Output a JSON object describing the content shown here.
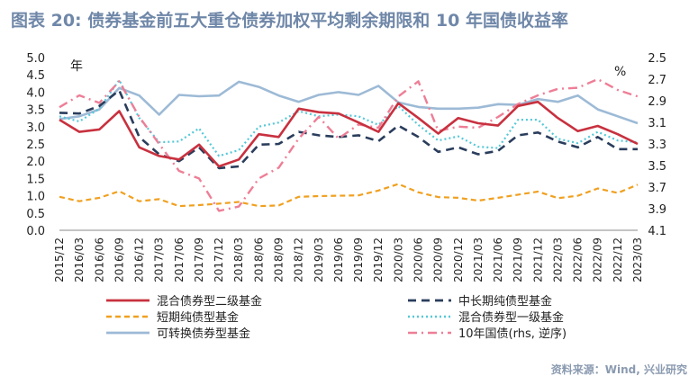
{
  "title": "图表 20: 债券基金前五大重仓债券加权平均剩余期限和 10 年国债收益率",
  "source": "资料来源：Wind, 兴业研究",
  "colors": {
    "hunhe2": "#c8313f",
    "zhongchang": "#2a3d5c",
    "duanqi": "#f0a020",
    "hunhe1": "#55c8d8",
    "kezhuan": "#9dbad6",
    "guozhai": "#ee7e96"
  },
  "chart_data": {
    "type": "line",
    "title": "图表 20: 债券基金前五大重仓债券加权平均剩余期限和 10 年国债收益率",
    "left_unit": "年",
    "right_unit": "%",
    "ylim_left": [
      0,
      5
    ],
    "yticks_left": [
      "0.0",
      "0.5",
      "1.0",
      "1.5",
      "2.0",
      "2.5",
      "3.0",
      "3.5",
      "4.0",
      "4.5",
      "5.0"
    ],
    "ylim_right": [
      2.5,
      4.1
    ],
    "right_inverted": true,
    "yticks_right": [
      "2.5",
      "2.7",
      "2.9",
      "3.1",
      "3.3",
      "3.5",
      "3.7",
      "3.9",
      "4.1"
    ],
    "categories": [
      "2015/12",
      "2016/03",
      "2016/06",
      "2016/09",
      "2016/12",
      "2017/03",
      "2017/06",
      "2017/09",
      "2017/12",
      "2018/03",
      "2018/06",
      "2018/09",
      "2018/12",
      "2019/03",
      "2019/06",
      "2019/09",
      "2019/12",
      "2020/03",
      "2020/06",
      "2020/09",
      "2020/12",
      "2021/03",
      "2021/06",
      "2021/09",
      "2021/12",
      "2022/03",
      "2022/06",
      "2022/09",
      "2022/12",
      "2023/03"
    ],
    "legend_position": "bottom",
    "grid": false,
    "series": [
      {
        "name": "混合债券型二级基金",
        "axis": "left",
        "style": "solid",
        "colorKey": "hunhe2",
        "values": [
          3.2,
          2.85,
          2.92,
          3.45,
          2.4,
          2.15,
          2.05,
          2.48,
          1.85,
          2.05,
          2.78,
          2.7,
          3.52,
          3.42,
          3.38,
          3.12,
          2.85,
          3.68,
          3.25,
          2.8,
          3.25,
          3.1,
          3.03,
          3.6,
          3.72,
          3.25,
          2.87,
          3.02,
          2.78,
          2.5
        ]
      },
      {
        "name": "中长期纯债型基金",
        "axis": "left",
        "style": "dashed",
        "colorKey": "zhongchang",
        "values": [
          3.4,
          3.38,
          3.6,
          4.05,
          2.7,
          2.2,
          2.0,
          2.4,
          1.8,
          1.85,
          2.48,
          2.5,
          2.85,
          2.75,
          2.7,
          2.75,
          2.58,
          3.03,
          2.7,
          2.27,
          2.4,
          2.2,
          2.3,
          2.75,
          2.83,
          2.57,
          2.4,
          2.7,
          2.35,
          2.35
        ]
      },
      {
        "name": "短期纯债型基金",
        "axis": "left",
        "style": "shortdash",
        "colorKey": "duanqi",
        "values": [
          0.97,
          0.84,
          0.94,
          1.13,
          0.84,
          0.9,
          0.7,
          0.73,
          0.77,
          0.82,
          0.7,
          0.72,
          0.97,
          0.99,
          1.0,
          1.01,
          1.15,
          1.34,
          1.1,
          0.96,
          0.94,
          0.86,
          0.94,
          1.03,
          1.12,
          0.93,
          1.0,
          1.21,
          1.08,
          1.32
        ]
      },
      {
        "name": "混合债券型一级基金",
        "axis": "left",
        "style": "dotted",
        "colorKey": "hunhe1",
        "values": [
          3.3,
          3.15,
          3.52,
          4.35,
          3.25,
          2.55,
          2.57,
          2.95,
          2.15,
          2.32,
          3.0,
          3.12,
          3.45,
          3.3,
          3.35,
          3.3,
          3.05,
          3.6,
          3.05,
          2.6,
          2.72,
          2.42,
          2.38,
          3.2,
          3.2,
          2.65,
          2.52,
          2.85,
          2.6,
          2.55
        ]
      },
      {
        "name": "可转换债券型基金",
        "axis": "left",
        "style": "solid",
        "colorKey": "kezhuan",
        "values": [
          3.22,
          3.3,
          3.5,
          4.12,
          3.9,
          3.35,
          3.92,
          3.88,
          3.9,
          4.3,
          4.15,
          3.9,
          3.72,
          3.92,
          4.0,
          3.92,
          4.18,
          3.7,
          3.57,
          3.52,
          3.52,
          3.55,
          3.65,
          3.63,
          3.8,
          3.72,
          3.9,
          3.5,
          3.3,
          3.1
        ]
      },
      {
        "name": "10年国债(rhs, 逆序)",
        "axis": "right",
        "style": "dashdot",
        "colorKey": "guozhai",
        "values": [
          2.96,
          2.85,
          2.92,
          2.72,
          3.05,
          3.3,
          3.55,
          3.62,
          3.92,
          3.88,
          3.62,
          3.52,
          3.25,
          3.05,
          3.25,
          3.12,
          3.15,
          2.86,
          2.72,
          3.18,
          3.14,
          3.15,
          3.05,
          2.93,
          2.85,
          2.79,
          2.78,
          2.7,
          2.8,
          2.86
        ]
      }
    ]
  }
}
